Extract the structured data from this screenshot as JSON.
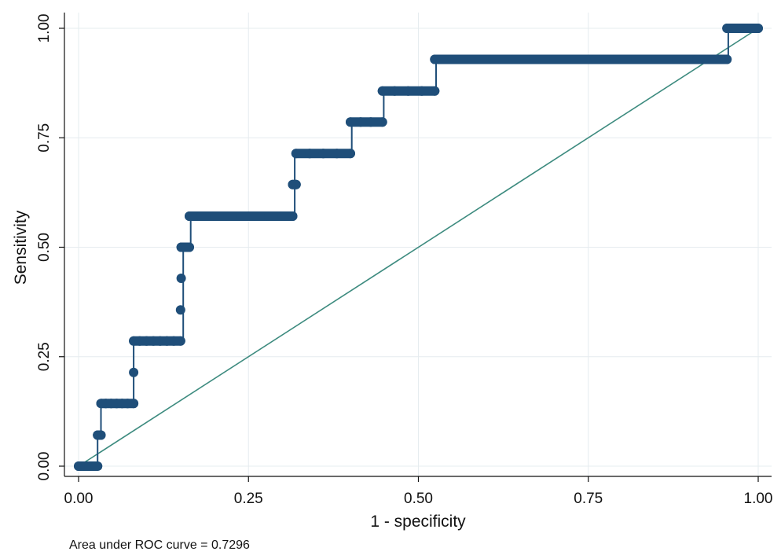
{
  "chart_data": {
    "type": "line",
    "title": "",
    "xlabel": "1 - specificity",
    "ylabel": "Sensitivity",
    "xlim": [
      0,
      1
    ],
    "ylim": [
      0,
      1
    ],
    "x_ticks": [
      "0.00",
      "0.25",
      "0.50",
      "0.75",
      "1.00"
    ],
    "y_ticks": [
      "0.00",
      "0.25",
      "0.50",
      "0.75",
      "1.00"
    ],
    "grid": true,
    "note": "Area under ROC curve = 0.7296",
    "colors": {
      "curve": "#1f4e79",
      "reference": "#3d8b7f",
      "grid": "#e6ecef",
      "axis": "#111111"
    },
    "series": [
      {
        "values": [
          [
            0.0,
            0.0
          ],
          [
            0.028,
            0.0
          ],
          [
            0.028,
            0.071
          ],
          [
            0.033,
            0.071
          ],
          [
            0.033,
            0.143
          ],
          [
            0.081,
            0.143
          ],
          [
            0.081,
            0.286
          ],
          [
            0.154,
            0.286
          ],
          [
            0.154,
            0.5
          ],
          [
            0.165,
            0.5
          ],
          [
            0.165,
            0.571
          ],
          [
            0.318,
            0.571
          ],
          [
            0.318,
            0.714
          ],
          [
            0.402,
            0.714
          ],
          [
            0.402,
            0.786
          ],
          [
            0.449,
            0.786
          ],
          [
            0.449,
            0.857
          ],
          [
            0.526,
            0.857
          ],
          [
            0.526,
            0.929
          ],
          [
            0.956,
            0.929
          ],
          [
            0.956,
            1.0
          ],
          [
            1.0,
            1.0
          ]
        ],
        "points": [
          [
            0.0,
            0.0
          ],
          [
            0.005,
            0.0
          ],
          [
            0.01,
            0.0
          ],
          [
            0.015,
            0.0
          ],
          [
            0.02,
            0.0
          ],
          [
            0.025,
            0.0
          ],
          [
            0.028,
            0.0
          ],
          [
            0.028,
            0.071
          ],
          [
            0.033,
            0.071
          ],
          [
            0.033,
            0.143
          ],
          [
            0.04,
            0.143
          ],
          [
            0.048,
            0.143
          ],
          [
            0.056,
            0.143
          ],
          [
            0.064,
            0.143
          ],
          [
            0.072,
            0.143
          ],
          [
            0.081,
            0.143
          ],
          [
            0.081,
            0.214
          ],
          [
            0.081,
            0.286
          ],
          [
            0.09,
            0.286
          ],
          [
            0.1,
            0.286
          ],
          [
            0.11,
            0.286
          ],
          [
            0.12,
            0.286
          ],
          [
            0.13,
            0.286
          ],
          [
            0.14,
            0.286
          ],
          [
            0.15,
            0.286
          ],
          [
            0.15,
            0.357
          ],
          [
            0.151,
            0.429
          ],
          [
            0.151,
            0.5
          ],
          [
            0.158,
            0.5
          ],
          [
            0.163,
            0.5
          ],
          [
            0.163,
            0.571
          ],
          [
            0.18,
            0.571
          ],
          [
            0.2,
            0.571
          ],
          [
            0.22,
            0.571
          ],
          [
            0.24,
            0.571
          ],
          [
            0.26,
            0.571
          ],
          [
            0.28,
            0.571
          ],
          [
            0.3,
            0.571
          ],
          [
            0.315,
            0.571
          ],
          [
            0.315,
            0.643
          ],
          [
            0.32,
            0.643
          ],
          [
            0.32,
            0.714
          ],
          [
            0.34,
            0.714
          ],
          [
            0.36,
            0.714
          ],
          [
            0.38,
            0.714
          ],
          [
            0.4,
            0.714
          ],
          [
            0.4,
            0.786
          ],
          [
            0.415,
            0.786
          ],
          [
            0.43,
            0.786
          ],
          [
            0.447,
            0.786
          ],
          [
            0.447,
            0.857
          ],
          [
            0.465,
            0.857
          ],
          [
            0.485,
            0.857
          ],
          [
            0.505,
            0.857
          ],
          [
            0.524,
            0.857
          ],
          [
            0.524,
            0.929
          ],
          [
            0.55,
            0.929
          ],
          [
            0.58,
            0.929
          ],
          [
            0.61,
            0.929
          ],
          [
            0.64,
            0.929
          ],
          [
            0.67,
            0.929
          ],
          [
            0.7,
            0.929
          ],
          [
            0.73,
            0.929
          ],
          [
            0.76,
            0.929
          ],
          [
            0.79,
            0.929
          ],
          [
            0.82,
            0.929
          ],
          [
            0.85,
            0.929
          ],
          [
            0.88,
            0.929
          ],
          [
            0.91,
            0.929
          ],
          [
            0.94,
            0.929
          ],
          [
            0.954,
            0.929
          ],
          [
            0.954,
            1.0
          ],
          [
            0.965,
            1.0
          ],
          [
            0.975,
            1.0
          ],
          [
            0.985,
            1.0
          ],
          [
            0.995,
            1.0
          ],
          [
            1.0,
            1.0
          ]
        ]
      },
      {
        "values": [
          [
            0,
            0
          ],
          [
            1,
            1
          ]
        ]
      }
    ]
  }
}
